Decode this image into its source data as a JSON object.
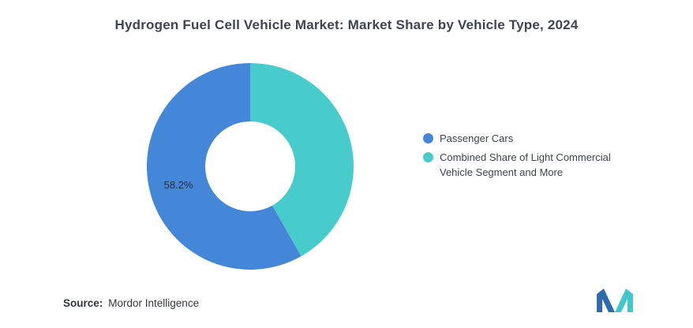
{
  "chart_data": {
    "type": "pie",
    "variant": "donut",
    "title": "Hydrogen Fuel Cell Vehicle Market: Market Share by Vehicle Type, 2024",
    "unit": "%",
    "start_angle_deg": 0,
    "direction": "counterclockwise",
    "legend_position": "right",
    "series": [
      {
        "name": "Passenger Cars",
        "value": 58.2,
        "color": "#4486D8",
        "label": "58.2%"
      },
      {
        "name": "Combined Share of Light Commercial Vehicle Segment and More",
        "value": 41.8,
        "color": "#48CBCB",
        "label": ""
      }
    ]
  },
  "legend": {
    "items": [
      {
        "label": "Passenger Cars",
        "color": "#4486D8"
      },
      {
        "label": "Combined Share of Light Commercial Vehicle Segment and More",
        "color": "#48CBCB"
      }
    ]
  },
  "footer": {
    "source_label": "Source:",
    "source_value": "Mordor Intelligence"
  },
  "branding": {
    "logo_name": "mordor-intelligence-logo",
    "logo_blue": "#2E6BAE",
    "logo_teal": "#41C6CB"
  }
}
